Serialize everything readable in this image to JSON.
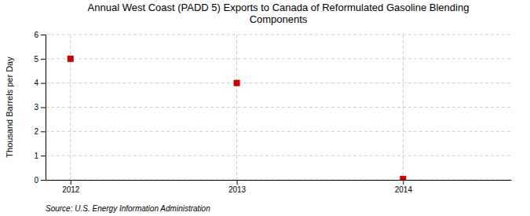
{
  "chart_data": {
    "type": "scatter",
    "title": "Annual West Coast (PADD 5) Exports to Canada of Reformulated Gasoline Blending\nComponents",
    "ylabel": "Thousand Barrels per Day",
    "source": "Source: U.S. Energy Information Administration",
    "x": [
      2012,
      2013,
      2014
    ],
    "values": [
      5,
      4,
      0.04
    ],
    "xlim": [
      2011.85,
      2014.65
    ],
    "ylim": [
      0,
      6
    ],
    "xticks": [
      2012,
      2013,
      2014
    ],
    "yticks": [
      0,
      1,
      2,
      3,
      4,
      5,
      6
    ],
    "color": "#CC0000",
    "marker": "square",
    "grid": true
  }
}
